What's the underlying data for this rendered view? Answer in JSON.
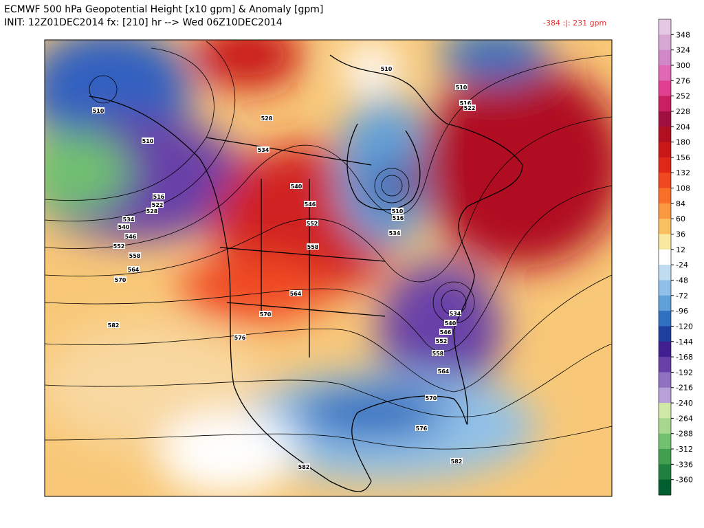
{
  "header": {
    "title": "ECMWF 500 hPa Geopotential Height [x10 gpm] & Anomaly [gpm]",
    "subtitle": "INIT: 12Z01DEC2014 fx: [210] hr --> Wed 06Z10DEC2014",
    "range": "-384 :|:  231 gpm"
  },
  "colorbar": {
    "labels": [
      "348",
      "324",
      "300",
      "276",
      "252",
      "228",
      "204",
      "180",
      "156",
      "132",
      "108",
      "84",
      "60",
      "36",
      "12",
      "-24",
      "-48",
      "-72",
      "-96",
      "-120",
      "-144",
      "-168",
      "-192",
      "-216",
      "-240",
      "-264",
      "-288",
      "-312",
      "-336",
      "-360"
    ],
    "colors": [
      "#e4c8e4",
      "#d8a8d4",
      "#d088c8",
      "#e068b4",
      "#e04090",
      "#c82060",
      "#a01040",
      "#b01020",
      "#c81818",
      "#e02818",
      "#f04820",
      "#f87028",
      "#f89840",
      "#f8c060",
      "#f8e8a0",
      "#ffffff",
      "#c0dcf0",
      "#90c0e8",
      "#60a0d8",
      "#3070c0",
      "#2040a0",
      "#402090",
      "#6840a8",
      "#9070c0",
      "#b8a0d8",
      "#d0e8a8",
      "#a8d890",
      "#70c070",
      "#40a050",
      "#208040",
      "#006030"
    ]
  },
  "contour_labels": [
    "510",
    "510",
    "516",
    "522",
    "528",
    "534",
    "540",
    "546",
    "552",
    "558",
    "564",
    "570",
    "582",
    "528",
    "534",
    "540",
    "546",
    "552",
    "558",
    "564",
    "570",
    "576",
    "510",
    "510",
    "516",
    "522",
    "510",
    "516",
    "534",
    "534",
    "540",
    "546",
    "552",
    "558",
    "564",
    "570",
    "576",
    "582",
    "582"
  ]
}
